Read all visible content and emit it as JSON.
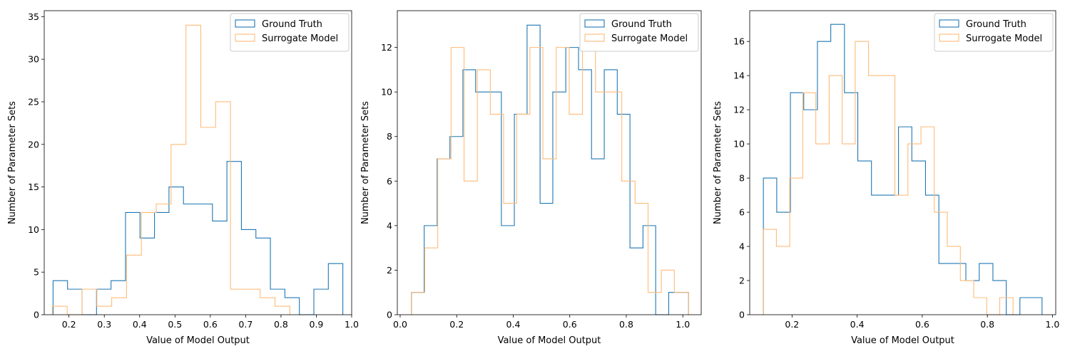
{
  "chart_data": [
    {
      "type": "histogram",
      "xlabel": "Value of Model Output",
      "ylabel": "Number of Parameter Sets",
      "xlim": [
        0.13,
        1.0
      ],
      "ylim": [
        0,
        35.7
      ],
      "xticks": [
        "0.2",
        "0.3",
        "0.4",
        "0.5",
        "0.6",
        "0.7",
        "0.8",
        "0.9",
        "1.0"
      ],
      "yticks": [
        "0",
        "5",
        "10",
        "15",
        "20",
        "25",
        "30",
        "35"
      ],
      "legend_position": "top-right",
      "series": [
        {
          "name": "Ground Truth",
          "color": "#1f77b4",
          "bin_edges": [
            0.155,
            0.196,
            0.237,
            0.278,
            0.319,
            0.36,
            0.401,
            0.442,
            0.483,
            0.524,
            0.565,
            0.606,
            0.647,
            0.688,
            0.729,
            0.77,
            0.811,
            0.852,
            0.893,
            0.934,
            0.975
          ],
          "counts": [
            4,
            3,
            0,
            3,
            4,
            12,
            9,
            12,
            15,
            13,
            13,
            11,
            18,
            10,
            9,
            3,
            2,
            0,
            3,
            6
          ]
        },
        {
          "name": "Surrogate Model",
          "color": "#ffbb78",
          "bin_edges": [
            0.153,
            0.195,
            0.237,
            0.279,
            0.321,
            0.363,
            0.405,
            0.447,
            0.489,
            0.531,
            0.573,
            0.615,
            0.657,
            0.699,
            0.741,
            0.783,
            0.825
          ],
          "counts": [
            1,
            0,
            3,
            1,
            2,
            7,
            12,
            13,
            20,
            34,
            22,
            25,
            3,
            3,
            2,
            1
          ]
        }
      ]
    },
    {
      "type": "histogram",
      "xlabel": "Value of Model Output",
      "ylabel": "Number of Parameter Sets",
      "xlim": [
        -0.01,
        1.065
      ],
      "ylim": [
        0,
        13.65
      ],
      "xticks": [
        "0.0",
        "0.2",
        "0.4",
        "0.6",
        "0.8",
        "1.0"
      ],
      "yticks": [
        "0",
        "2",
        "4",
        "6",
        "8",
        "10",
        "12"
      ],
      "legend_position": "top-right",
      "series": [
        {
          "name": "Ground Truth",
          "color": "#1f77b4",
          "bin_edges": [
            0.04,
            0.085,
            0.131,
            0.176,
            0.222,
            0.267,
            0.313,
            0.358,
            0.404,
            0.449,
            0.495,
            0.54,
            0.586,
            0.631,
            0.677,
            0.722,
            0.768,
            0.813,
            0.859,
            0.904,
            0.95,
            1.02
          ],
          "counts": [
            1,
            4,
            7,
            8,
            11,
            10,
            10,
            4,
            9,
            13,
            5,
            10,
            12,
            11,
            7,
            11,
            9,
            3,
            4,
            0,
            1
          ]
        },
        {
          "name": "Surrogate Model",
          "color": "#ffbb78",
          "bin_edges": [
            0.04,
            0.087,
            0.133,
            0.18,
            0.226,
            0.273,
            0.319,
            0.366,
            0.412,
            0.459,
            0.505,
            0.552,
            0.598,
            0.645,
            0.691,
            0.738,
            0.784,
            0.831,
            0.877,
            0.924,
            0.97,
            1.02
          ],
          "counts": [
            1,
            3,
            7,
            12,
            6,
            11,
            9,
            5,
            9,
            12,
            7,
            12,
            9,
            12,
            10,
            10,
            6,
            5,
            1,
            2,
            1
          ]
        }
      ]
    },
    {
      "type": "histogram",
      "xlabel": "Value of Model Output",
      "ylabel": "Number of Parameter Sets",
      "xlim": [
        0.07,
        1.01
      ],
      "ylim": [
        0,
        17.8
      ],
      "xticks": [
        "0.2",
        "0.4",
        "0.6",
        "0.8",
        "1.0"
      ],
      "yticks": [
        "0",
        "2",
        "4",
        "6",
        "8",
        "10",
        "12",
        "14",
        "16"
      ],
      "legend_position": "top-right",
      "series": [
        {
          "name": "Ground Truth",
          "color": "#1f77b4",
          "bin_edges": [
            0.112,
            0.153,
            0.195,
            0.236,
            0.278,
            0.319,
            0.361,
            0.402,
            0.444,
            0.485,
            0.527,
            0.568,
            0.61,
            0.651,
            0.692,
            0.734,
            0.775,
            0.817,
            0.858,
            0.9,
            0.92,
            0.968
          ],
          "counts": [
            8,
            6,
            13,
            12,
            16,
            17,
            13,
            9,
            7,
            7,
            11,
            9,
            7,
            3,
            3,
            2,
            3,
            2,
            0,
            1,
            1
          ]
        },
        {
          "name": "Surrogate Model",
          "color": "#ffbb78",
          "bin_edges": [
            0.112,
            0.152,
            0.193,
            0.233,
            0.273,
            0.314,
            0.354,
            0.394,
            0.435,
            0.475,
            0.516,
            0.556,
            0.596,
            0.637,
            0.677,
            0.717,
            0.758,
            0.798,
            0.838,
            0.879
          ],
          "counts": [
            5,
            4,
            8,
            13,
            10,
            14,
            10,
            16,
            14,
            14,
            7,
            10,
            11,
            6,
            4,
            2,
            1,
            0,
            1
          ]
        }
      ]
    }
  ]
}
